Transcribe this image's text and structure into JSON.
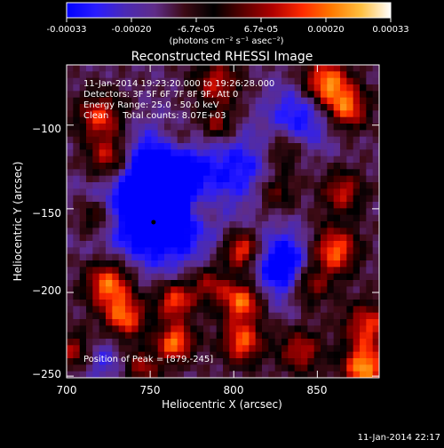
{
  "colorbar": {
    "ticks": [
      "-0.00033",
      "-0.00020",
      "-6.7e-05",
      "6.7e-05",
      "0.00020",
      "0.00033"
    ],
    "units": "(photons cm⁻² s⁻¹ asec⁻²)",
    "range": [
      -0.00033,
      0.00033
    ],
    "colors": [
      "#0000ff",
      "#2a1cff",
      "#4b2ab4",
      "#5f2c88",
      "#3c0a14",
      "#000000",
      "#5a0000",
      "#b00000",
      "#ff2a00",
      "#ff7a00",
      "#ffc040",
      "#ffffff"
    ]
  },
  "chart_data": {
    "type": "heatmap",
    "title": "Reconstructed RHESSI Image",
    "xlabel": "Heliocentric X (arcsec)",
    "ylabel": "Heliocentric Y (arcsec)",
    "xlim": [
      700,
      887
    ],
    "ylim": [
      -251,
      -64
    ],
    "xticks": [
      700,
      750,
      800,
      850
    ],
    "xtick_labels": [
      "700",
      "750",
      "800",
      "850"
    ],
    "yticks": [
      -250,
      -200,
      -150,
      -100
    ],
    "ytick_labels": [
      "−250",
      "−200",
      "−150",
      "−100"
    ],
    "annotations": [
      "11-Jan-2014 19:23:20.000 to 19:26:28.000",
      "Detectors: 3F 5F 6F 7F 8F 9F, Att 0",
      "Energy Range: 25.0 - 50.0 keV",
      "Clean     Total counts: 8.07E+03"
    ],
    "peak_label": "Position of Peak = [879,-245]",
    "peak": [
      879,
      -245
    ],
    "marker": [
      752,
      -158
    ],
    "grid": false,
    "value_grid_note": "intensity sampled on a 16x16 grid, normalized -1..1 (negative = blue/purple, positive = red/yellow)"
  },
  "timestamp": "11-Jan-2014 22:17"
}
